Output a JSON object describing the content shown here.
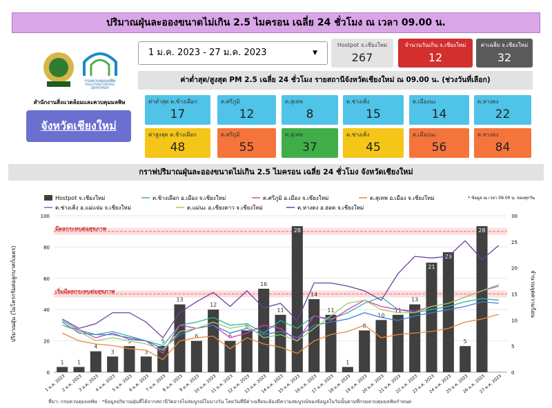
{
  "header": {
    "title": "ปริมาณฝุ่นละอองขนาดไม่เกิน 2.5 ไมครอน เฉลี่ย 24 ชั่วโมง ณ เวลา 09.00 น."
  },
  "logo": {
    "name": "กรมควบคุมมลพิษ",
    "english": "POLLUTION CONTROL DEPARTMENT"
  },
  "office": "สำนักงานสิ่งแวดล้อมและควบคุมมลพิษ",
  "province_button": "จังหวัดเชียงใหม่",
  "date_range": "1 ม.ค. 2023 - 27 ม.ค. 2023",
  "kpis": [
    {
      "label": "Hostpot จ.เชียงใหม่",
      "value": 267,
      "color": "#e3e3e3"
    },
    {
      "label": "จำนวนวันเกิน จ.เชียงใหม่",
      "value": 12,
      "color": "#d32f2f"
    },
    {
      "label": "ค่าเฉลี่ย จ.เชียงใหม่",
      "value": 32,
      "color": "#5a5a5a"
    }
  ],
  "stations_title": "ค่าต่ำสุด/สูงสุด PM 2.5 เฉลี่ย 24 ชั่วโมง รายสถานีจังหวัดเชียงใหม่ ณ 09.00 น. (ช่วงวันที่เลือก)",
  "min_cards": [
    {
      "label": "ค่าต่ำสุด ต.ช้างเผือก",
      "value": 17,
      "color": "#4fc3e8"
    },
    {
      "label": "ต.ศรีภูมิ",
      "value": 12,
      "color": "#4fc3e8"
    },
    {
      "label": "ต.สุเทพ",
      "value": 8,
      "color": "#4fc3e8"
    },
    {
      "label": "ต.ช่างเคิ่ง",
      "value": 15,
      "color": "#4fc3e8"
    },
    {
      "label": "ต.เมืองนะ",
      "value": 14,
      "color": "#4fc3e8"
    },
    {
      "label": "ต.หางดง",
      "value": 22,
      "color": "#4fc3e8"
    }
  ],
  "max_cards": [
    {
      "label": "ค่าสูงสุด ต.ช้างเผือก",
      "value": 48,
      "color": "#f5c518"
    },
    {
      "label": "ต.ศรีภูมิ",
      "value": 55,
      "color": "#f4743b"
    },
    {
      "label": "ต.สุเทพ",
      "value": 37,
      "color": "#3fae49"
    },
    {
      "label": "ต.ช่างเคิ่ง",
      "value": 45,
      "color": "#f5c518"
    },
    {
      "label": "ต.เมืองนะ",
      "value": 56,
      "color": "#f4743b"
    },
    {
      "label": "ต.หางดง",
      "value": 84,
      "color": "#f4743b"
    }
  ],
  "chart_data": {
    "type": "bar_line",
    "title": "กราฟปริมาณฝุ่นละอองขนาดไม่เกิน 2.5 ไมครอน เฉลี่ย 24 ชั่วโมง จังหวัดเชียงใหม่",
    "note": "* ข้อมูล ณ เวลา 09.00 น. ของทุกวัน",
    "ylabel": "ปริมาณฝุ่น (ไมโครกรัมต่อลูกบาศก์เมตร)",
    "y2label": "จำนวนจุดความร้อน",
    "categories": [
      "1 ม.ค. 2023",
      "2 ม.ค. 2023",
      "3 ม.ค. 2023",
      "4 ม.ค. 2023",
      "5 ม.ค. 2023",
      "6 ม.ค. 2023",
      "7 ม.ค. 2023",
      "8 ม.ค. 2023",
      "9 ม.ค. 2023",
      "10 ม.ค. 2023",
      "11 ม.ค. 2023",
      "12 ม.ค. 2023",
      "13 ม.ค. 2023",
      "14 ม.ค. 2023",
      "15 ม.ค. 2023",
      "16 ม.ค. 2023",
      "17 ม.ค. 2023",
      "18 ม.ค. 2023",
      "19 ม.ค. 2023",
      "20 ม.ค. 2023",
      "21 ม.ค. 2023",
      "22 ม.ค. 2023",
      "23 ม.ค. 2023",
      "24 ม.ค. 2023",
      "25 ม.ค. 2023",
      "26 ม.ค. 2023",
      "27 ม.ค. 2023"
    ],
    "ylim": [
      0,
      100
    ],
    "yticks": [
      0,
      20,
      40,
      60,
      80,
      100
    ],
    "y2lim": [
      0,
      30
    ],
    "y2ticks": [
      0,
      5,
      10,
      15,
      20,
      25,
      30
    ],
    "annotations": [
      {
        "label": "มีผลกระทบต่อสุขภาพ",
        "value": 90
      },
      {
        "label": "เริ่มมีผลกระทบต่อสุขภาพ",
        "value": 50
      }
    ],
    "series": [
      {
        "name": "Hostpot จ.เชียงใหม่",
        "type": "bar",
        "axis": "y2",
        "color": "#404040",
        "values": [
          1,
          1,
          4,
          3,
          5,
          3,
          5,
          13,
          6,
          12,
          6,
          8,
          16,
          11,
          28,
          14,
          11,
          1,
          8,
          10,
          11,
          13,
          21,
          23,
          5,
          28,
          null
        ]
      },
      {
        "name": "ต.ช้างเผือก อ.เมือง จ.เชียงใหม่",
        "type": "line",
        "color": "#2bb3a3",
        "values": [
          33,
          27,
          24,
          26,
          23,
          20,
          17,
          30,
          32,
          35,
          30,
          31,
          25,
          33,
          28,
          36,
          34,
          38,
          44,
          48,
          40,
          38,
          40,
          42,
          45,
          47,
          46
        ]
      },
      {
        "name": "ต.ศรีภูมิ อ.เมือง จ.เชียงใหม่",
        "type": "line",
        "color": "#d63ab8",
        "values": [
          30,
          27,
          22,
          25,
          21,
          20,
          12,
          30,
          28,
          30,
          22,
          25,
          30,
          28,
          20,
          36,
          33,
          40,
          46,
          42,
          40,
          39,
          42,
          44,
          48,
          52,
          55
        ]
      },
      {
        "name": "ต.สุเทพ อ.เมือง จ.เชียงใหม่",
        "type": "line",
        "color": "#e8893a",
        "values": [
          25,
          20,
          18,
          17,
          15,
          14,
          8,
          20,
          22,
          23,
          15,
          22,
          18,
          16,
          12,
          20,
          24,
          26,
          30,
          22,
          24,
          25,
          26,
          28,
          32,
          34,
          37
        ]
      },
      {
        "name": "ต.ช่างเคิ่ง อ.แม่แจ่ม จ.เชียงใหม่",
        "type": "line",
        "color": "#3f7fd6",
        "values": [
          32,
          25,
          24,
          24,
          22,
          20,
          15,
          24,
          28,
          30,
          25,
          28,
          24,
          26,
          22,
          30,
          32,
          34,
          38,
          35,
          33,
          36,
          38,
          40,
          42,
          45,
          44
        ]
      },
      {
        "name": "ต.แม่นะ อ.เชียงดาว จ.เชียงใหม่",
        "type": "line",
        "color": "#9ccc65",
        "values": [
          30,
          26,
          20,
          22,
          20,
          18,
          14,
          26,
          28,
          32,
          28,
          30,
          22,
          24,
          20,
          28,
          36,
          44,
          46,
          40,
          38,
          38,
          42,
          44,
          48,
          52,
          56
        ]
      },
      {
        "name": "ต.หางดง อ.ฮอด จ.เชียงใหม่",
        "type": "line",
        "color": "#6a3fa0",
        "values": [
          34,
          28,
          31,
          38,
          38,
          32,
          22,
          38,
          45,
          51,
          42,
          52,
          41,
          44,
          33,
          57,
          57,
          55,
          52,
          46,
          63,
          74,
          73,
          74,
          84,
          72,
          81
        ]
      }
    ]
  },
  "footer": "ที่มา: กรมควบคุมมลพิษ · *ข้อมูลปริมาณฝุ่นที่ได้จากสถานีวัดอาจไม่สมบูรณ์ในบางวัน โดยวันที่มีค่าเฉลี่ยจะต้องมีความสมบูรณ์ของข้อมูลในวันนั้นตามที่กรมควบคุมมลพิษกำหนด"
}
